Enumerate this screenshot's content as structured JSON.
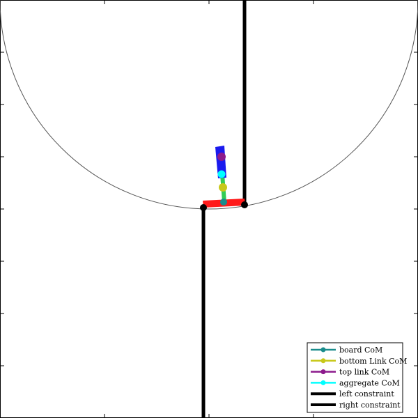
{
  "scene": {
    "background": "#ffffff",
    "axis_color": "#000000",
    "arc_color": "#555555",
    "constraint_color": "#000000"
  },
  "board": {
    "color": "#ff1a1a"
  },
  "bottom_link": {
    "color": "#33cc55"
  },
  "top_link": {
    "color": "#1a1aee"
  },
  "markers": {
    "board_com": {
      "color": "#1a8c8c"
    },
    "bottom_link_com": {
      "color": "#c8c81a"
    },
    "top_link_com": {
      "color": "#8c1a8c"
    },
    "aggregate_com": {
      "color": "#00ffff"
    }
  },
  "legend": {
    "entries": [
      {
        "label": "board CoM",
        "color": "#1a8c8c",
        "style": "marker"
      },
      {
        "label": "bottom Link CoM",
        "color": "#c8c81a",
        "style": "marker"
      },
      {
        "label": "top link CoM",
        "color": "#8c1a8c",
        "style": "marker"
      },
      {
        "label": "aggregate CoM",
        "color": "#00ffff",
        "style": "marker"
      },
      {
        "label": "left constraint",
        "color": "#000000",
        "style": "line"
      },
      {
        "label": "right constraint",
        "color": "#000000",
        "style": "line"
      }
    ]
  }
}
